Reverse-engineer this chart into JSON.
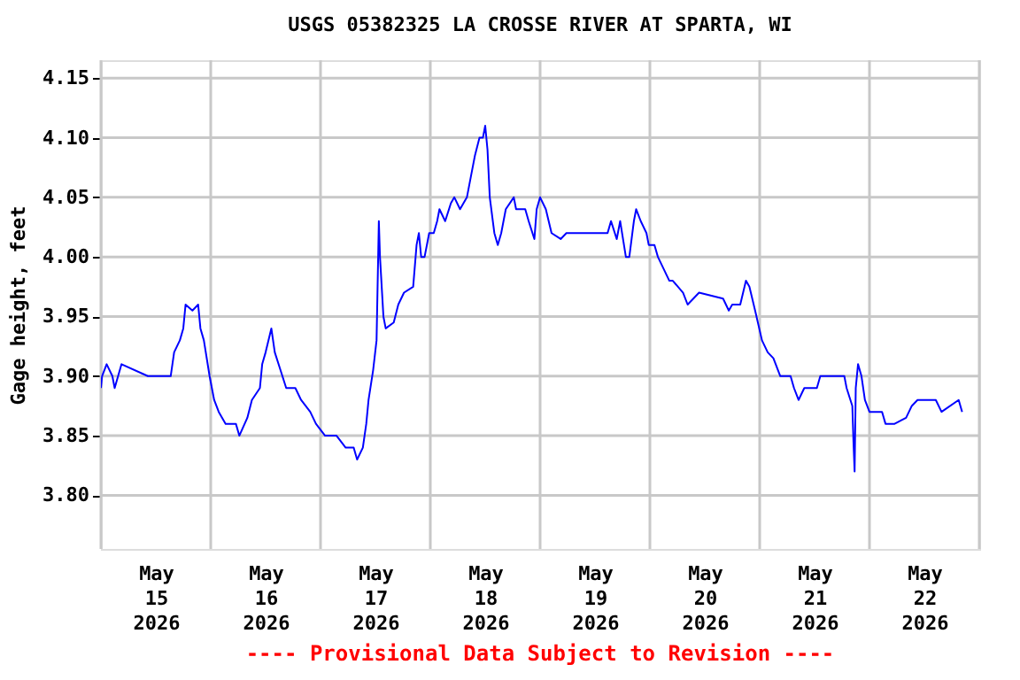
{
  "chart_data": {
    "type": "line",
    "title": "USGS 05382325 LA CROSSE RIVER AT SPARTA, WI",
    "ylabel": "Gage height, feet",
    "annotations": [
      "---- Provisional Data Subject to Revision ----"
    ],
    "x": [
      "2026-05-15T00:00",
      "2026-05-15T00:15",
      "2026-05-15T01:15",
      "2026-05-15T02:30",
      "2026-05-15T03:00",
      "2026-05-15T04:30",
      "2026-05-15T10:15",
      "2026-05-15T15:15",
      "2026-05-15T16:00",
      "2026-05-15T17:15",
      "2026-05-15T18:00",
      "2026-05-15T18:30",
      "2026-05-15T20:00",
      "2026-05-15T21:15",
      "2026-05-15T21:45",
      "2026-05-15T22:30",
      "2026-05-15T23:45",
      "2026-05-16T00:45",
      "2026-05-16T01:45",
      "2026-05-16T03:15",
      "2026-05-16T05:30",
      "2026-05-16T06:15",
      "2026-05-16T08:00",
      "2026-05-16T09:00",
      "2026-05-16T10:45",
      "2026-05-16T11:15",
      "2026-05-16T12:00",
      "2026-05-16T13:15",
      "2026-05-16T14:00",
      "2026-05-16T15:15",
      "2026-05-16T16:30",
      "2026-05-16T18:30",
      "2026-05-16T19:45",
      "2026-05-16T21:45",
      "2026-05-16T23:00",
      "2026-05-17T01:00",
      "2026-05-17T03:30",
      "2026-05-17T05:30",
      "2026-05-17T07:15",
      "2026-05-17T08:00",
      "2026-05-17T09:15",
      "2026-05-17T10:00",
      "2026-05-17T10:30",
      "2026-05-17T11:30",
      "2026-05-17T12:15",
      "2026-05-17T12:45",
      "2026-05-17T13:00",
      "2026-05-17T13:45",
      "2026-05-17T14:15",
      "2026-05-17T16:00",
      "2026-05-17T17:00",
      "2026-05-17T18:15",
      "2026-05-17T20:15",
      "2026-05-17T21:00",
      "2026-05-17T21:30",
      "2026-05-17T22:00",
      "2026-05-17T22:45",
      "2026-05-17T23:45",
      "2026-05-18T00:45",
      "2026-05-18T01:30",
      "2026-05-18T02:00",
      "2026-05-18T03:15",
      "2026-05-18T04:30",
      "2026-05-18T05:15",
      "2026-05-18T06:30",
      "2026-05-18T08:00",
      "2026-05-18T09:00",
      "2026-05-18T09:45",
      "2026-05-18T10:45",
      "2026-05-18T11:30",
      "2026-05-18T12:00",
      "2026-05-18T12:30",
      "2026-05-18T13:00",
      "2026-05-18T14:00",
      "2026-05-18T14:45",
      "2026-05-18T15:30",
      "2026-05-18T16:30",
      "2026-05-18T18:15",
      "2026-05-18T18:45",
      "2026-05-18T20:45",
      "2026-05-18T21:30",
      "2026-05-18T22:45",
      "2026-05-18T23:15",
      "2026-05-19T00:00",
      "2026-05-19T01:15",
      "2026-05-19T02:30",
      "2026-05-19T04:30",
      "2026-05-19T05:45",
      "2026-05-19T14:45",
      "2026-05-19T15:30",
      "2026-05-19T16:45",
      "2026-05-19T17:30",
      "2026-05-19T18:45",
      "2026-05-19T19:30",
      "2026-05-19T20:30",
      "2026-05-19T21:00",
      "2026-05-19T22:00",
      "2026-05-19T23:15",
      "2026-05-19T23:45",
      "2026-05-20T01:00",
      "2026-05-20T01:45",
      "2026-05-20T03:00",
      "2026-05-20T04:15",
      "2026-05-20T05:00",
      "2026-05-20T07:15",
      "2026-05-20T08:15",
      "2026-05-20T10:45",
      "2026-05-20T16:00",
      "2026-05-20T17:15",
      "2026-05-20T18:00",
      "2026-05-20T19:45",
      "2026-05-20T21:00",
      "2026-05-20T21:45",
      "2026-05-20T23:00",
      "2026-05-21T00:30",
      "2026-05-21T01:45",
      "2026-05-21T03:00",
      "2026-05-21T04:30",
      "2026-05-21T06:45",
      "2026-05-21T07:30",
      "2026-05-21T08:30",
      "2026-05-21T09:45",
      "2026-05-21T12:30",
      "2026-05-21T13:15",
      "2026-05-21T18:30",
      "2026-05-21T19:00",
      "2026-05-21T20:15",
      "2026-05-21T20:30",
      "2026-05-21T20:45",
      "2026-05-21T21:00",
      "2026-05-21T21:30",
      "2026-05-21T22:15",
      "2026-05-21T23:00",
      "2026-05-22T00:00",
      "2026-05-22T02:45",
      "2026-05-22T03:30",
      "2026-05-22T05:30",
      "2026-05-22T08:00",
      "2026-05-22T09:15",
      "2026-05-22T10:30",
      "2026-05-22T14:30",
      "2026-05-22T15:45",
      "2026-05-22T19:30",
      "2026-05-22T20:15"
    ],
    "series": [
      {
        "color": "#0000ff",
        "values": [
          3.89,
          3.9,
          3.91,
          3.9,
          3.89,
          3.91,
          3.9,
          3.9,
          3.92,
          3.93,
          3.94,
          3.96,
          3.955,
          3.96,
          3.94,
          3.93,
          3.9,
          3.88,
          3.87,
          3.86,
          3.86,
          3.85,
          3.865,
          3.88,
          3.89,
          3.91,
          3.92,
          3.94,
          3.92,
          3.905,
          3.89,
          3.89,
          3.88,
          3.87,
          3.86,
          3.85,
          3.85,
          3.84,
          3.84,
          3.83,
          3.84,
          3.86,
          3.88,
          3.905,
          3.93,
          4.03,
          4.0,
          3.95,
          3.94,
          3.945,
          3.96,
          3.97,
          3.975,
          4.01,
          4.02,
          4.0,
          4.0,
          4.02,
          4.02,
          4.03,
          4.04,
          4.03,
          4.045,
          4.05,
          4.04,
          4.05,
          4.07,
          4.085,
          4.1,
          4.1,
          4.11,
          4.09,
          4.05,
          4.02,
          4.01,
          4.02,
          4.04,
          4.05,
          4.04,
          4.04,
          4.03,
          4.015,
          4.04,
          4.05,
          4.04,
          4.02,
          4.015,
          4.02,
          4.02,
          4.03,
          4.015,
          4.03,
          4.0,
          4.0,
          4.03,
          4.04,
          4.03,
          4.02,
          4.01,
          4.01,
          4.0,
          3.99,
          3.98,
          3.98,
          3.97,
          3.96,
          3.97,
          3.965,
          3.955,
          3.96,
          3.96,
          3.98,
          3.975,
          3.955,
          3.93,
          3.92,
          3.915,
          3.9,
          3.9,
          3.89,
          3.88,
          3.89,
          3.89,
          3.9,
          3.9,
          3.89,
          3.875,
          3.845,
          3.82,
          3.89,
          3.91,
          3.9,
          3.88,
          3.87,
          3.87,
          3.86,
          3.86,
          3.865,
          3.875,
          3.88,
          3.88,
          3.87,
          3.88,
          3.87
        ]
      }
    ],
    "xlim": [
      "2026-05-15T00:00",
      "2026-05-23T00:00"
    ],
    "xticks": [
      {
        "value": "2026-05-15T00:00",
        "label": null
      },
      {
        "value": "2026-05-15T12:00",
        "label": "May 15 2026"
      },
      {
        "value": "2026-05-16T00:00",
        "label": null
      },
      {
        "value": "2026-05-16T12:00",
        "label": "May 16 2026"
      },
      {
        "value": "2026-05-17T00:00",
        "label": null
      },
      {
        "value": "2026-05-17T12:00",
        "label": "May 17 2026"
      },
      {
        "value": "2026-05-18T00:00",
        "label": null
      },
      {
        "value": "2026-05-18T12:00",
        "label": "May 18 2026"
      },
      {
        "value": "2026-05-19T00:00",
        "label": null
      },
      {
        "value": "2026-05-19T12:00",
        "label": "May 19 2026"
      },
      {
        "value": "2026-05-20T00:00",
        "label": null
      },
      {
        "value": "2026-05-20T12:00",
        "label": "May 20 2026"
      },
      {
        "value": "2026-05-21T00:00",
        "label": null
      },
      {
        "value": "2026-05-21T12:00",
        "label": "May 21 2026"
      },
      {
        "value": "2026-05-22T00:00",
        "label": null
      },
      {
        "value": "2026-05-22T12:00",
        "label": "May 22 2026"
      },
      {
        "value": "2026-05-23T00:00",
        "label": null
      }
    ],
    "ylim": [
      3.755,
      4.165
    ],
    "yticks": [
      {
        "value": 3.8,
        "label": "3.80"
      },
      {
        "value": 3.85,
        "label": "3.85"
      },
      {
        "value": 3.9,
        "label": "3.90"
      },
      {
        "value": 3.95,
        "label": "3.95"
      },
      {
        "value": 4.0,
        "label": "4.00"
      },
      {
        "value": 4.05,
        "label": "4.05"
      },
      {
        "value": 4.1,
        "label": "4.10"
      },
      {
        "value": 4.15,
        "label": "4.15"
      }
    ],
    "grid": true,
    "legend": false,
    "marker": "none",
    "line_style": "solid"
  }
}
